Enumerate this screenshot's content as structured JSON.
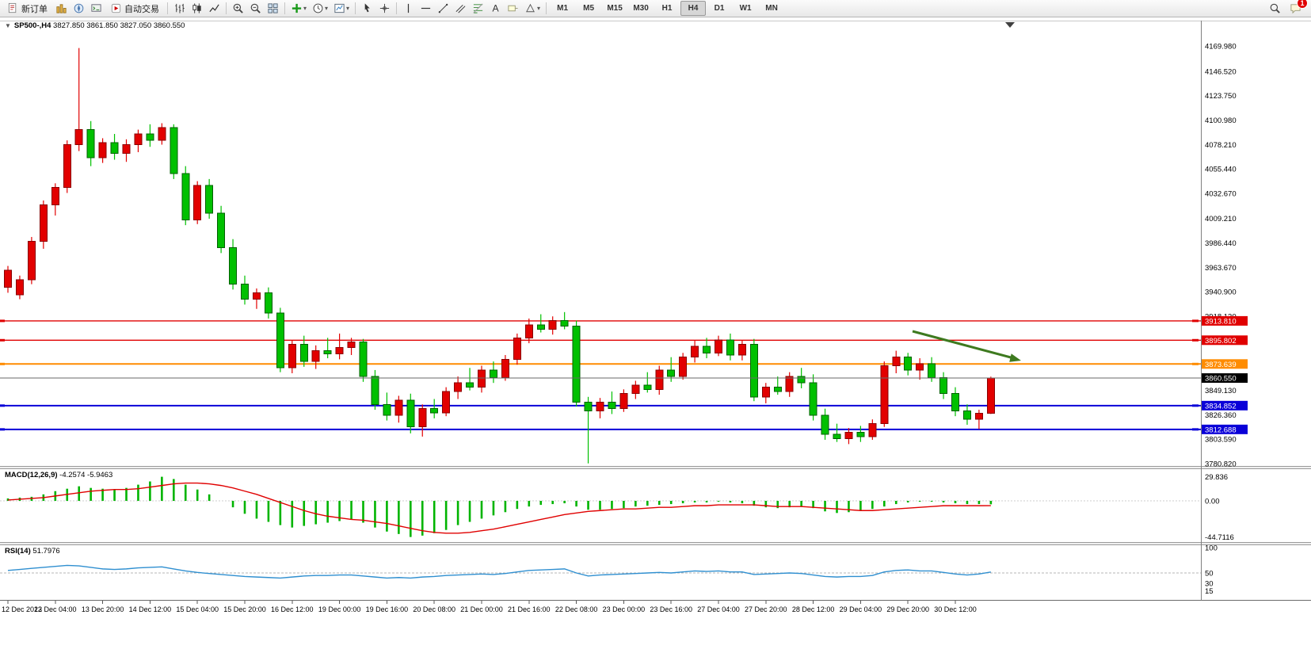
{
  "window": {
    "symbol_title": "SP500-,H4",
    "ohlc": "3827.850 3861.850 3827.050 3860.550"
  },
  "toolbar": {
    "items": [
      {
        "type": "button",
        "name": "new-order-button",
        "icon": "new-order-icon",
        "label": "新订单"
      },
      {
        "type": "icon",
        "name": "market-watch-button",
        "icon": "market-watch-icon"
      },
      {
        "type": "icon",
        "name": "navigator-button",
        "icon": "navigator-icon"
      },
      {
        "type": "icon",
        "name": "terminal-button",
        "icon": "terminal-icon"
      },
      {
        "type": "button",
        "name": "auto-trading-button",
        "icon": "auto-trading-icon",
        "label": "自动交易"
      },
      {
        "type": "sep"
      },
      {
        "type": "icon",
        "name": "bar-chart-button",
        "icon": "bar-chart-icon"
      },
      {
        "type": "icon",
        "name": "candlestick-button",
        "icon": "candlestick-icon"
      },
      {
        "type": "icon",
        "name": "line-chart-button",
        "icon": "line-chart-icon"
      },
      {
        "type": "sep"
      },
      {
        "type": "icon",
        "name": "zoom-in-button",
        "icon": "zoom-in-icon"
      },
      {
        "type": "icon",
        "name": "zoom-out-button",
        "icon": "zoom-out-icon"
      },
      {
        "type": "icon",
        "name": "tile-windows-button",
        "icon": "tile-windows-icon"
      },
      {
        "type": "sep"
      },
      {
        "type": "dropdown",
        "name": "indicators-dropdown",
        "icon": "indicators-icon"
      },
      {
        "type": "dropdown",
        "name": "periods-dropdown",
        "icon": "clock-icon"
      },
      {
        "type": "dropdown",
        "name": "templates-dropdown",
        "icon": "template-icon"
      },
      {
        "type": "sep"
      },
      {
        "type": "icon",
        "name": "cursor-button",
        "icon": "cursor-icon"
      },
      {
        "type": "icon",
        "name": "crosshair-button",
        "icon": "crosshair-icon"
      },
      {
        "type": "sep"
      },
      {
        "type": "icon",
        "name": "vertical-line-button",
        "icon": "vertical-line-icon"
      },
      {
        "type": "icon",
        "name": "horizontal-line-button",
        "icon": "horizontal-line-icon"
      },
      {
        "type": "icon",
        "name": "trendline-button",
        "icon": "trendline-icon"
      },
      {
        "type": "icon",
        "name": "channel-button",
        "icon": "channel-icon"
      },
      {
        "type": "icon",
        "name": "fibonacci-button",
        "icon": "fibonacci-icon"
      },
      {
        "type": "icon",
        "name": "text-button",
        "icon": "text-icon"
      },
      {
        "type": "icon",
        "name": "label-button",
        "icon": "label-icon"
      },
      {
        "type": "dropdown",
        "name": "shapes-dropdown",
        "icon": "shapes-icon"
      },
      {
        "type": "sep"
      }
    ],
    "timeframes": [
      "M1",
      "M5",
      "M15",
      "M30",
      "H1",
      "H4",
      "D1",
      "W1",
      "MN"
    ],
    "active_timeframe": "H4",
    "right_items": [
      {
        "name": "search-button",
        "icon": "search-icon"
      },
      {
        "name": "notifications-button",
        "icon": "chat-icon",
        "badge": "1"
      }
    ]
  },
  "indicators": {
    "macd_name": "MACD(12,26,9)",
    "macd_values": "-4.2574 -5.9463",
    "rsi_name": "RSI(14)",
    "rsi_value": "51.7976"
  },
  "chart_data": {
    "type": "candlestick",
    "symbol": "SP500-,H4",
    "price_range": {
      "top": 4169.98,
      "bottom": 3780.82
    },
    "y_axis_ticks": [
      "4169.980",
      "4146.520",
      "4123.750",
      "4100.980",
      "4078.210",
      "4055.440",
      "4032.670",
      "4009.210",
      "3986.440",
      "3963.670",
      "3940.900",
      "3918.130",
      "3849.130",
      "3826.360",
      "3803.590",
      "3780.820"
    ],
    "x_labels": [
      "12 Dec 2022",
      "13 Dec 04:00",
      "13 Dec 20:00",
      "14 Dec 12:00",
      "15 Dec 04:00",
      "15 Dec 20:00",
      "16 Dec 12:00",
      "19 Dec 00:00",
      "19 Dec 16:00",
      "20 Dec 08:00",
      "21 Dec 00:00",
      "21 Dec 16:00",
      "22 Dec 08:00",
      "23 Dec 00:00",
      "23 Dec 16:00",
      "27 Dec 04:00",
      "27 Dec 20:00",
      "28 Dec 12:00",
      "29 Dec 04:00",
      "29 Dec 20:00",
      "30 Dec 12:00"
    ],
    "label_every": 4,
    "candles": [
      [
        3945,
        3965,
        3940,
        3961
      ],
      [
        3938,
        3956,
        3934,
        3952
      ],
      [
        3952,
        3992,
        3948,
        3988
      ],
      [
        3988,
        4026,
        3981,
        4022
      ],
      [
        4022,
        4042,
        4012,
        4038
      ],
      [
        4038,
        4082,
        4033,
        4078
      ],
      [
        4078,
        4168,
        4072,
        4092
      ],
      [
        4092,
        4100,
        4058,
        4066
      ],
      [
        4066,
        4084,
        4061,
        4080
      ],
      [
        4080,
        4088,
        4064,
        4070
      ],
      [
        4070,
        4083,
        4062,
        4078
      ],
      [
        4078,
        4092,
        4071,
        4088
      ],
      [
        4088,
        4097,
        4076,
        4082
      ],
      [
        4082,
        4098,
        4078,
        4094
      ],
      [
        4094,
        4097,
        4046,
        4051
      ],
      [
        4051,
        4058,
        4003,
        4008
      ],
      [
        4008,
        4044,
        4004,
        4040
      ],
      [
        4040,
        4046,
        4009,
        4014
      ],
      [
        4014,
        4021,
        3977,
        3982
      ],
      [
        3982,
        3990,
        3943,
        3948
      ],
      [
        3948,
        3956,
        3929,
        3934
      ],
      [
        3934,
        3944,
        3925,
        3940
      ],
      [
        3940,
        3945,
        3916,
        3921
      ],
      [
        3921,
        3926,
        3866,
        3870
      ],
      [
        3870,
        3896,
        3865,
        3892
      ],
      [
        3892,
        3900,
        3871,
        3876
      ],
      [
        3876,
        3891,
        3869,
        3886
      ],
      [
        3886,
        3898,
        3879,
        3883
      ],
      [
        3883,
        3902,
        3878,
        3889
      ],
      [
        3889,
        3898,
        3882,
        3894
      ],
      [
        3894,
        3897,
        3857,
        3862
      ],
      [
        3862,
        3868,
        3831,
        3836
      ],
      [
        3836,
        3847,
        3821,
        3826
      ],
      [
        3826,
        3844,
        3819,
        3840
      ],
      [
        3840,
        3846,
        3809,
        3815
      ],
      [
        3815,
        3836,
        3806,
        3832
      ],
      [
        3832,
        3841,
        3823,
        3828
      ],
      [
        3828,
        3852,
        3825,
        3848
      ],
      [
        3848,
        3862,
        3841,
        3856
      ],
      [
        3856,
        3870,
        3849,
        3852
      ],
      [
        3852,
        3872,
        3847,
        3868
      ],
      [
        3868,
        3876,
        3856,
        3861
      ],
      [
        3861,
        3882,
        3858,
        3878
      ],
      [
        3878,
        3902,
        3873,
        3898
      ],
      [
        3898,
        3916,
        3893,
        3910
      ],
      [
        3910,
        3920,
        3903,
        3906
      ],
      [
        3906,
        3918,
        3901,
        3914
      ],
      [
        3914,
        3922,
        3906,
        3909
      ],
      [
        3909,
        3914,
        3834,
        3838
      ],
      [
        3838,
        3843,
        3781,
        3830
      ],
      [
        3830,
        3842,
        3823,
        3838
      ],
      [
        3838,
        3848,
        3827,
        3832
      ],
      [
        3832,
        3850,
        3829,
        3846
      ],
      [
        3846,
        3858,
        3841,
        3854
      ],
      [
        3854,
        3866,
        3847,
        3850
      ],
      [
        3850,
        3872,
        3845,
        3868
      ],
      [
        3868,
        3880,
        3857,
        3862
      ],
      [
        3862,
        3884,
        3859,
        3880
      ],
      [
        3880,
        3896,
        3875,
        3890
      ],
      [
        3890,
        3898,
        3879,
        3884
      ],
      [
        3884,
        3900,
        3881,
        3896
      ],
      [
        3896,
        3902,
        3877,
        3882
      ],
      [
        3882,
        3896,
        3877,
        3892
      ],
      [
        3892,
        3897,
        3839,
        3843
      ],
      [
        3843,
        3856,
        3837,
        3852
      ],
      [
        3852,
        3862,
        3845,
        3848
      ],
      [
        3848,
        3866,
        3843,
        3862
      ],
      [
        3862,
        3870,
        3851,
        3856
      ],
      [
        3856,
        3864,
        3821,
        3826
      ],
      [
        3826,
        3832,
        3803,
        3808
      ],
      [
        3808,
        3818,
        3801,
        3804
      ],
      [
        3804,
        3814,
        3799,
        3810
      ],
      [
        3810,
        3816,
        3801,
        3806
      ],
      [
        3806,
        3822,
        3803,
        3818
      ],
      [
        3818,
        3876,
        3815,
        3872
      ],
      [
        3872,
        3886,
        3865,
        3880
      ],
      [
        3880,
        3884,
        3863,
        3868
      ],
      [
        3868,
        3879,
        3859,
        3874
      ],
      [
        3874,
        3880,
        3857,
        3861
      ],
      [
        3861,
        3866,
        3841,
        3846
      ],
      [
        3846,
        3852,
        3825,
        3830
      ],
      [
        3830,
        3836,
        3817,
        3822
      ],
      [
        3822,
        3831,
        3813,
        3827.85
      ],
      [
        3827.85,
        3861.85,
        3827.05,
        3860.55
      ]
    ],
    "colors": {
      "up": "#e20000",
      "up_border": "#8a0000",
      "down": "#00c000",
      "down_border": "#006000"
    },
    "hlines": [
      {
        "price": 3913.81,
        "label": "3913.810",
        "color": "#e00000",
        "width": 1.4
      },
      {
        "price": 3895.802,
        "label": "3895.802",
        "color": "#e00000",
        "width": 1.4
      },
      {
        "price": 3873.639,
        "label": "3873.639",
        "color": "#ff8c00",
        "width": 2
      },
      {
        "price": 3834.852,
        "label": "3834.852",
        "color": "#0a00d8",
        "width": 2
      },
      {
        "price": 3812.688,
        "label": "3812.688",
        "color": "#0a00d8",
        "width": 2
      }
    ],
    "current_price": {
      "price": 3860.55,
      "label": "3860.550",
      "line_color": "#6a6a6a",
      "badge_color": "#000000"
    },
    "arrow": {
      "color": "#3e7a1f"
    },
    "macd": {
      "axis_labels": [
        "29.836",
        "0.00",
        "-44.7116"
      ],
      "hist_color": "#00b400",
      "signal_color": "#e00000",
      "histogram": [
        3,
        4,
        5,
        8,
        12,
        15,
        18,
        16,
        15,
        14,
        16,
        20,
        24,
        29.8,
        27,
        20,
        14,
        8,
        0,
        -8,
        -16,
        -22,
        -26,
        -30,
        -33,
        -31,
        -29,
        -27,
        -25,
        -23,
        -27,
        -33,
        -38,
        -41,
        -44.7,
        -43,
        -40,
        -36,
        -30,
        -26,
        -22,
        -18,
        -14,
        -10,
        -7,
        -5,
        -4,
        -3,
        -7,
        -11,
        -11,
        -10,
        -9,
        -7,
        -6,
        -5,
        -4,
        -3,
        -2,
        -2,
        -1,
        -2,
        -3,
        -6,
        -8,
        -9,
        -8,
        -7,
        -9,
        -13,
        -15,
        -14,
        -12,
        -10,
        -7,
        -4,
        -2,
        -1,
        -1,
        -2,
        -3,
        -4,
        -4,
        -4.26
      ],
      "signal": [
        1,
        2,
        3,
        4,
        6,
        8,
        10,
        12,
        13,
        14,
        14,
        15,
        17,
        19,
        21,
        22,
        22,
        21,
        19,
        16,
        12,
        8,
        3,
        -2,
        -7,
        -12,
        -16,
        -19,
        -21,
        -23,
        -24,
        -26,
        -28,
        -31,
        -34,
        -37,
        -39,
        -40,
        -40,
        -39,
        -37,
        -35,
        -32,
        -29,
        -26,
        -23,
        -20,
        -17,
        -15,
        -13,
        -12,
        -11,
        -10,
        -10,
        -9,
        -8,
        -8,
        -7,
        -6,
        -6,
        -5,
        -5,
        -5,
        -5,
        -6,
        -7,
        -7,
        -7,
        -8,
        -9,
        -10,
        -11,
        -12,
        -12,
        -11,
        -10,
        -9,
        -8,
        -7,
        -6,
        -6,
        -6,
        -6,
        -5.95
      ]
    },
    "rsi": {
      "axis_labels": [
        "100",
        "50",
        "30",
        "15"
      ],
      "axis_values": [
        100,
        50,
        30,
        15
      ],
      "level": 50,
      "color": "#2f8fd0",
      "values": [
        55,
        57,
        59,
        61,
        63,
        65,
        64,
        61,
        58,
        57,
        58,
        60,
        61,
        62,
        58,
        54,
        51,
        49,
        47,
        45,
        43,
        42,
        41,
        40,
        42,
        44,
        45,
        45,
        46,
        46,
        44,
        42,
        40,
        41,
        40,
        42,
        43,
        45,
        46,
        47,
        48,
        47,
        49,
        52,
        55,
        56,
        57,
        58,
        50,
        44,
        46,
        47,
        48,
        49,
        50,
        51,
        50,
        52,
        54,
        53,
        54,
        52,
        52,
        47,
        48,
        49,
        50,
        49,
        46,
        43,
        42,
        43,
        43,
        45,
        52,
        55,
        56,
        54,
        54,
        51,
        48,
        46,
        48,
        51.8
      ]
    }
  }
}
